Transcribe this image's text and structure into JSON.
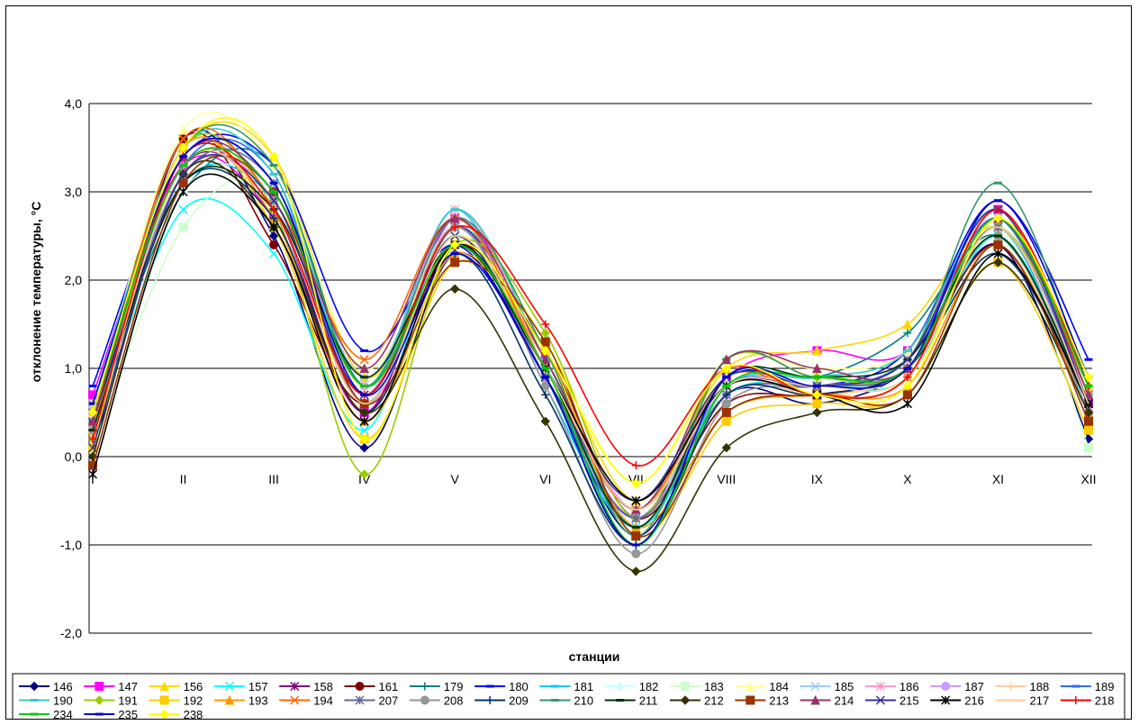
{
  "chart_data": {
    "type": "line",
    "title": "",
    "xlabel": "станции",
    "ylabel": "отклонение температуры, °C",
    "categories": [
      "I",
      "II",
      "III",
      "IV",
      "V",
      "VI",
      "VII",
      "VIII",
      "IX",
      "X",
      "XI",
      "XII"
    ],
    "y_ticks": [
      "-2,0",
      "-1,0",
      "0,0",
      "1,0",
      "2,0",
      "3,0",
      "4,0"
    ],
    "ylim": [
      -2,
      4
    ],
    "grid": "horizontal",
    "legend_position": "bottom",
    "series": [
      {
        "name": "146",
        "color": "#000080",
        "marker": "diamond",
        "values": [
          0.0,
          3.6,
          2.5,
          0.1,
          2.3,
          0.9,
          -0.9,
          0.7,
          0.6,
          1.0,
          2.4,
          0.2
        ]
      },
      {
        "name": "147",
        "color": "#ff00ff",
        "marker": "square",
        "values": [
          0.7,
          3.3,
          2.7,
          0.5,
          2.7,
          1.1,
          -0.6,
          0.9,
          1.2,
          1.2,
          2.8,
          0.6
        ]
      },
      {
        "name": "156",
        "color": "#ffd700",
        "marker": "triangle",
        "values": [
          0.6,
          3.5,
          3.4,
          0.9,
          2.5,
          1.3,
          -0.5,
          1.0,
          1.2,
          1.5,
          2.6,
          0.8
        ]
      },
      {
        "name": "157",
        "color": "#00ffff",
        "marker": "x",
        "values": [
          0.3,
          2.8,
          2.3,
          0.3,
          2.6,
          1.0,
          -0.8,
          0.7,
          0.8,
          0.9,
          2.5,
          0.6
        ]
      },
      {
        "name": "158",
        "color": "#800080",
        "marker": "star",
        "values": [
          0.4,
          3.3,
          2.8,
          0.5,
          2.6,
          1.0,
          -0.6,
          0.8,
          0.8,
          1.1,
          2.7,
          0.7
        ]
      },
      {
        "name": "161",
        "color": "#800000",
        "marker": "circle",
        "values": [
          0.3,
          3.6,
          2.4,
          0.6,
          2.4,
          1.2,
          -0.7,
          0.6,
          0.7,
          1.0,
          2.4,
          0.5
        ]
      },
      {
        "name": "179",
        "color": "#008080",
        "marker": "plus",
        "values": [
          0.5,
          3.0,
          3.3,
          0.8,
          2.5,
          0.9,
          -1.0,
          0.9,
          0.9,
          1.4,
          2.5,
          0.6
        ]
      },
      {
        "name": "180",
        "color": "#0000ff",
        "marker": "dash",
        "values": [
          0.8,
          3.4,
          3.3,
          1.2,
          2.4,
          0.9,
          -0.7,
          0.9,
          0.8,
          1.2,
          2.9,
          1.1
        ]
      },
      {
        "name": "181",
        "color": "#00ccff",
        "marker": "dash",
        "values": [
          0.5,
          3.1,
          2.9,
          0.7,
          2.8,
          0.8,
          -0.8,
          0.8,
          0.8,
          1.0,
          2.6,
          0.5
        ]
      },
      {
        "name": "182",
        "color": "#ccffff",
        "marker": "diamond",
        "values": [
          0.2,
          3.0,
          3.0,
          0.8,
          2.6,
          0.9,
          -0.6,
          0.9,
          0.9,
          1.0,
          2.7,
          0.4
        ]
      },
      {
        "name": "183",
        "color": "#ccffcc",
        "marker": "square",
        "values": [
          0.1,
          2.6,
          3.0,
          0.6,
          2.5,
          1.0,
          -0.6,
          0.8,
          0.9,
          0.9,
          2.6,
          0.1
        ]
      },
      {
        "name": "184",
        "color": "#ffff99",
        "marker": "triangle",
        "values": [
          0.5,
          3.7,
          3.3,
          1.0,
          2.5,
          1.3,
          -0.3,
          1.1,
          1.0,
          1.2,
          2.7,
          0.9
        ]
      },
      {
        "name": "185",
        "color": "#99ccff",
        "marker": "x",
        "values": [
          0.6,
          3.4,
          3.1,
          0.9,
          2.6,
          0.9,
          -0.6,
          0.7,
          0.8,
          1.0,
          2.7,
          0.7
        ]
      },
      {
        "name": "186",
        "color": "#ff99cc",
        "marker": "star",
        "values": [
          0.3,
          3.3,
          2.9,
          0.7,
          2.8,
          1.0,
          -0.7,
          0.8,
          0.8,
          1.1,
          2.8,
          0.6
        ]
      },
      {
        "name": "187",
        "color": "#cc99ff",
        "marker": "circle",
        "values": [
          0.5,
          3.2,
          3.0,
          0.8,
          2.7,
          0.9,
          -0.7,
          0.7,
          0.8,
          1.0,
          2.6,
          0.7
        ]
      },
      {
        "name": "188",
        "color": "#ffcc99",
        "marker": "plus",
        "values": [
          0.3,
          3.4,
          2.9,
          0.8,
          2.6,
          1.0,
          -0.6,
          0.8,
          0.7,
          1.0,
          2.6,
          0.6
        ]
      },
      {
        "name": "189",
        "color": "#3366ff",
        "marker": "dash",
        "values": [
          0.4,
          3.3,
          3.2,
          0.6,
          2.6,
          0.9,
          -0.8,
          0.8,
          0.8,
          1.1,
          2.7,
          0.6
        ]
      },
      {
        "name": "190",
        "color": "#33cccc",
        "marker": "dash",
        "values": [
          0.6,
          3.5,
          3.2,
          0.8,
          2.8,
          1.1,
          -0.8,
          0.8,
          0.9,
          1.2,
          2.8,
          0.7
        ]
      },
      {
        "name": "191",
        "color": "#99cc00",
        "marker": "diamond",
        "values": [
          0.2,
          3.5,
          2.8,
          -0.2,
          2.4,
          1.4,
          -0.7,
          1.1,
          0.9,
          1.0,
          2.6,
          0.8
        ]
      },
      {
        "name": "192",
        "color": "#ffcc00",
        "marker": "square",
        "values": [
          0.1,
          3.5,
          2.6,
          0.2,
          2.2,
          1.2,
          -0.9,
          0.4,
          0.6,
          0.7,
          2.2,
          0.3
        ]
      },
      {
        "name": "193",
        "color": "#ff9900",
        "marker": "triangle",
        "values": [
          0.3,
          3.5,
          2.7,
          0.4,
          2.3,
          1.1,
          -0.8,
          0.5,
          0.7,
          0.8,
          2.4,
          0.5
        ]
      },
      {
        "name": "194",
        "color": "#ff6600",
        "marker": "x",
        "values": [
          0.4,
          3.6,
          2.9,
          1.1,
          2.7,
          1.0,
          -0.6,
          0.9,
          0.7,
          0.9,
          2.8,
          0.7
        ]
      },
      {
        "name": "207",
        "color": "#666699",
        "marker": "star",
        "values": [
          0.4,
          3.2,
          3.1,
          0.6,
          2.6,
          0.9,
          -0.7,
          0.7,
          0.8,
          1.0,
          2.6,
          0.6
        ]
      },
      {
        "name": "208",
        "color": "#969696",
        "marker": "circle",
        "values": [
          0.3,
          3.2,
          2.9,
          0.6,
          2.6,
          0.8,
          -1.1,
          0.6,
          0.8,
          1.0,
          2.5,
          0.5
        ]
      },
      {
        "name": "209",
        "color": "#003366",
        "marker": "plus",
        "values": [
          0.4,
          3.1,
          2.7,
          0.5,
          2.3,
          0.7,
          -1.0,
          0.7,
          0.7,
          1.0,
          2.3,
          0.6
        ]
      },
      {
        "name": "210",
        "color": "#339966",
        "marker": "dash",
        "values": [
          0.5,
          3.5,
          3.3,
          0.8,
          2.7,
          1.2,
          -0.9,
          1.1,
          0.9,
          1.1,
          3.1,
          0.8
        ]
      },
      {
        "name": "211",
        "color": "#003300",
        "marker": "dash",
        "values": [
          0.3,
          3.1,
          2.8,
          0.9,
          2.4,
          1.0,
          -0.8,
          0.9,
          0.9,
          1.1,
          2.5,
          0.6
        ]
      },
      {
        "name": "212",
        "color": "#333300",
        "marker": "diamond",
        "values": [
          0.0,
          3.2,
          2.6,
          0.5,
          1.9,
          0.4,
          -1.3,
          0.1,
          0.5,
          0.7,
          2.2,
          0.5
        ]
      },
      {
        "name": "213",
        "color": "#993300",
        "marker": "square",
        "values": [
          -0.1,
          3.1,
          3.0,
          0.6,
          2.2,
          1.3,
          -0.9,
          0.5,
          0.7,
          0.7,
          2.4,
          0.4
        ]
      },
      {
        "name": "214",
        "color": "#993366",
        "marker": "triangle",
        "values": [
          0.4,
          3.4,
          3.0,
          1.0,
          2.7,
          1.1,
          -0.6,
          1.1,
          1.0,
          1.0,
          2.7,
          0.7
        ]
      },
      {
        "name": "215",
        "color": "#333399",
        "marker": "x",
        "values": [
          0.1,
          3.2,
          2.9,
          0.7,
          2.5,
          0.9,
          -0.5,
          0.9,
          0.8,
          1.1,
          2.8,
          0.6
        ]
      },
      {
        "name": "216",
        "color": "#000000",
        "marker": "star",
        "values": [
          -0.2,
          3.0,
          2.6,
          0.4,
          2.4,
          1.0,
          -0.5,
          0.8,
          0.7,
          0.6,
          2.3,
          0.6
        ]
      },
      {
        "name": "217",
        "color": "#ffcc99",
        "marker": "none",
        "values": [
          0.2,
          3.3,
          2.8,
          0.6,
          2.5,
          1.0,
          -0.6,
          0.8,
          0.8,
          0.9,
          2.6,
          0.6
        ]
      },
      {
        "name": "218",
        "color": "#ff0000",
        "marker": "plus",
        "values": [
          0.2,
          3.4,
          2.8,
          0.7,
          2.6,
          1.5,
          -0.1,
          1.0,
          0.7,
          0.9,
          2.8,
          0.8
        ]
      },
      {
        "name": "234",
        "color": "#00cc00",
        "marker": "dash",
        "values": [
          0.5,
          3.3,
          3.0,
          0.8,
          2.4,
          1.0,
          -1.0,
          0.8,
          0.9,
          1.0,
          2.7,
          0.8
        ]
      },
      {
        "name": "235",
        "color": "#0000cc",
        "marker": "dash",
        "values": [
          0.6,
          3.4,
          3.1,
          0.7,
          2.3,
          0.9,
          -1.0,
          0.9,
          0.8,
          1.0,
          2.9,
          0.9
        ]
      },
      {
        "name": "238",
        "color": "#ffff00",
        "marker": "diamond",
        "values": [
          0.5,
          3.5,
          3.4,
          0.2,
          2.4,
          1.2,
          -0.3,
          1.0,
          0.7,
          0.8,
          2.7,
          0.9
        ]
      }
    ]
  }
}
